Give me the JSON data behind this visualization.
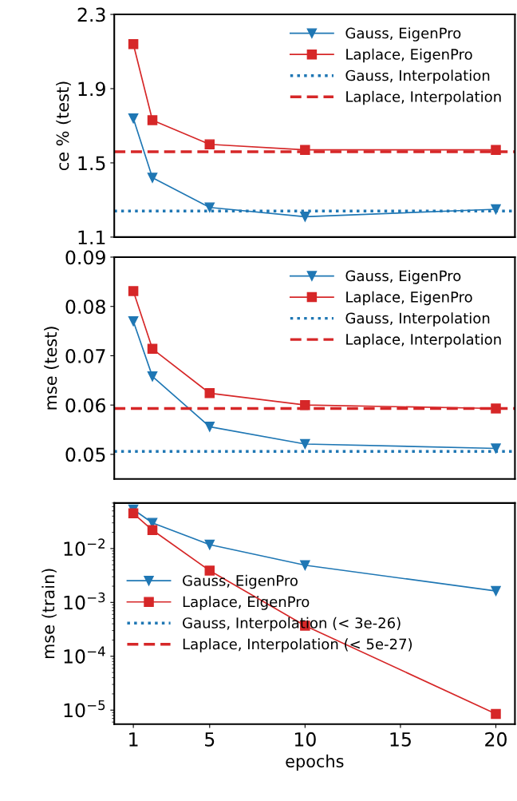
{
  "chart_data": [
    {
      "type": "line",
      "ylabel": "ce % (test)",
      "x": [
        1,
        2,
        5,
        10,
        20
      ],
      "xlim": [
        0,
        21
      ],
      "ylim": [
        1.1,
        2.3
      ],
      "yticks": [
        1.1,
        1.5,
        1.9,
        2.3
      ],
      "tick_labels": "y",
      "grid": false,
      "legend": "top right",
      "series": [
        {
          "name": "Gauss, EigenPro",
          "color": "#1f77b4",
          "marker": "triangle",
          "line_style": "solid",
          "values": [
            1.74,
            1.42,
            1.26,
            1.21,
            1.25
          ]
        },
        {
          "name": "Laplace, EigenPro",
          "color": "#d62728",
          "marker": "square",
          "line_style": "solid",
          "values": [
            2.14,
            1.73,
            1.6,
            1.57,
            1.57
          ]
        }
      ],
      "ref_lines": [
        {
          "axis": "y",
          "value": 1.24,
          "label": "Gauss, Interpolation",
          "color": "#1f77b4",
          "line_style": "dotted"
        },
        {
          "axis": "y",
          "value": 1.56,
          "label": "Laplace, Interpolation",
          "color": "#d62728",
          "line_style": "dashed"
        }
      ]
    },
    {
      "type": "line",
      "ylabel": "mse (test)",
      "x": [
        1,
        2,
        5,
        10,
        20
      ],
      "xlim": [
        0,
        21
      ],
      "ylim": [
        0.045,
        0.09
      ],
      "yticks": [
        0.05,
        0.06,
        0.07,
        0.08,
        0.09
      ],
      "tick_labels": "y",
      "grid": false,
      "legend": "top right",
      "series": [
        {
          "name": "Gauss, EigenPro",
          "color": "#1f77b4",
          "marker": "triangle",
          "line_style": "solid",
          "values": [
            0.077,
            0.0658,
            0.0556,
            0.0521,
            0.0512
          ]
        },
        {
          "name": "Laplace, EigenPro",
          "color": "#d62728",
          "marker": "square",
          "line_style": "solid",
          "values": [
            0.0831,
            0.0714,
            0.0624,
            0.06,
            0.0593
          ]
        }
      ],
      "ref_lines": [
        {
          "axis": "y",
          "value": 0.0506,
          "label": "Gauss, Interpolation",
          "color": "#1f77b4",
          "line_style": "dotted"
        },
        {
          "axis": "y",
          "value": 0.0593,
          "label": "Laplace, Interpolation",
          "color": "#d62728",
          "line_style": "dashed"
        }
      ]
    },
    {
      "type": "line",
      "ylabel": "mse (train)",
      "xlabel": "epochs",
      "x": [
        1,
        2,
        5,
        10,
        20
      ],
      "xlim": [
        0,
        21
      ],
      "xticks": [
        1,
        5,
        10,
        15,
        20
      ],
      "log": "y",
      "ylim": [
        5.5e-06,
        0.07
      ],
      "yticks": [
        {
          "value": 1e-05,
          "label": "10$^{−5}$"
        },
        {
          "value": 0.0001,
          "label": "10$^{−4}$"
        },
        {
          "value": 0.001,
          "label": "10$^{−3}$"
        },
        {
          "value": 0.01,
          "label": "10$^{−2}$"
        }
      ],
      "grid": false,
      "legend": "center left",
      "series": [
        {
          "name": "Gauss, EigenPro",
          "color": "#1f77b4",
          "marker": "triangle",
          "line_style": "solid",
          "values": [
            0.053,
            0.03,
            0.0118,
            0.0049,
            0.00163
          ]
        },
        {
          "name": "Laplace, EigenPro",
          "color": "#d62728",
          "marker": "square",
          "line_style": "solid",
          "values": [
            0.045,
            0.022,
            0.0039,
            0.00037,
            8.5e-06
          ]
        },
        {
          "name": "Gauss, Interpolation (< 3e-26)",
          "color": "#1f77b4",
          "marker": "none",
          "line_style": "dotted",
          "values": [
            null,
            null,
            null,
            null,
            null
          ]
        },
        {
          "name": "Laplace, Interpolation (< 5e-27)",
          "color": "#d62728",
          "marker": "none",
          "line_style": "dashed",
          "values": [
            null,
            null,
            null,
            null,
            null
          ]
        }
      ]
    }
  ]
}
